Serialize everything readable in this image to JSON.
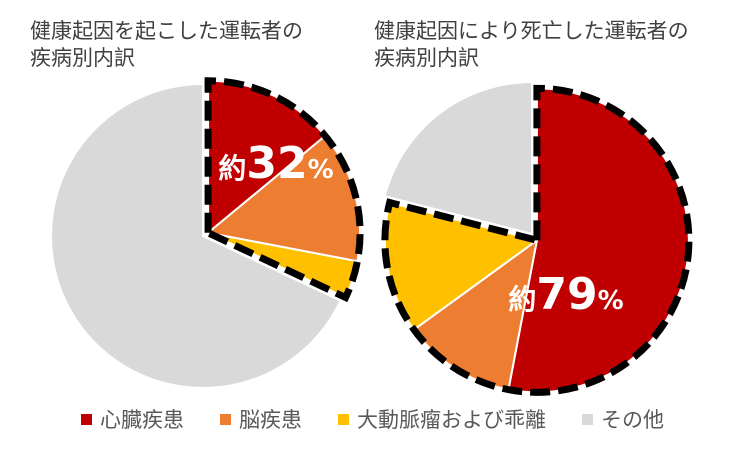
{
  "chart_data": [
    {
      "type": "pie",
      "title": "健康起因を起こした運転者の\n疾病別内訳",
      "categories": [
        "心臓疾患",
        "脳疾患",
        "大動脈瘤および乖離",
        "その他"
      ],
      "values": [
        14,
        14,
        4,
        68
      ],
      "callout": {
        "prefix": "約",
        "number": "32",
        "unit": "%"
      }
    },
    {
      "type": "pie",
      "title": "健康起因により死亡した運転者の\n疾病別内訳",
      "categories": [
        "心臓疾患",
        "脳疾患",
        "大動脈瘤および乖離",
        "その他"
      ],
      "values": [
        53,
        12,
        14,
        21
      ],
      "callout": {
        "prefix": "約",
        "number": "79",
        "unit": "%"
      }
    }
  ],
  "legend": [
    {
      "label": "心臓疾患",
      "color": "#c00000"
    },
    {
      "label": "脳疾患",
      "color": "#ed7d31"
    },
    {
      "label": "大動脈瘤および乖離",
      "color": "#ffc000"
    },
    {
      "label": "その他",
      "color": "#d9d9d9"
    }
  ]
}
